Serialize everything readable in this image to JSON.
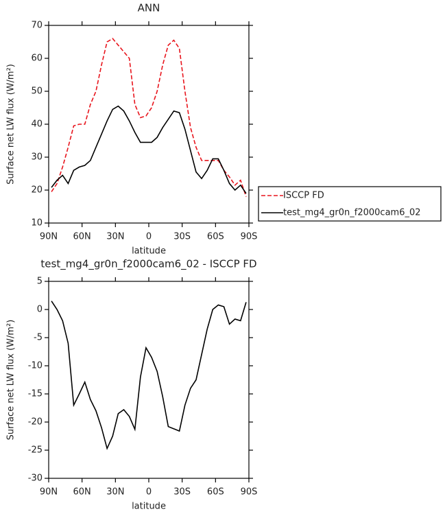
{
  "chart_data": [
    {
      "type": "line",
      "title": "ANN",
      "xlabel": "latitude",
      "ylabel": "Surface net LW flux (W/m²)",
      "x": [
        87.5,
        82.5,
        77.5,
        72.5,
        67.5,
        62.5,
        57.5,
        52.5,
        47.5,
        42.5,
        37.5,
        32.5,
        27.5,
        22.5,
        17.5,
        12.5,
        7.5,
        2.5,
        -2.5,
        -7.5,
        -12.5,
        -17.5,
        -22.5,
        -27.5,
        -32.5,
        -37.5,
        -42.5,
        -47.5,
        -52.5,
        -57.5,
        -62.5,
        -67.5,
        -72.5,
        -77.5,
        -82.5,
        -87.5
      ],
      "series": [
        {
          "name": "ISCCP FD",
          "color": "#e8141c",
          "style": "dashed",
          "values": [
            19.5,
            22,
            27,
            33,
            39.5,
            40,
            40,
            46,
            50,
            58,
            65,
            66,
            64,
            62,
            60,
            46,
            42,
            42.5,
            45,
            50,
            58,
            64,
            65.5,
            63,
            50,
            39,
            33,
            29,
            29,
            29,
            29,
            26,
            24,
            21.5,
            23,
            18
          ]
        },
        {
          "name": "test_mg4_gr0n_f2000cam6_02",
          "color": "#000000",
          "style": "solid",
          "values": [
            20.8,
            23,
            24.5,
            22,
            26,
            27,
            27.5,
            29,
            33,
            37,
            41,
            44.5,
            45.5,
            44,
            41,
            37.5,
            34.5,
            34.5,
            34.5,
            36,
            39,
            41.5,
            44,
            43.5,
            38.5,
            32,
            25.5,
            23.5,
            26,
            29.5,
            29.5,
            26,
            22,
            20,
            21.5,
            19
          ]
        }
      ],
      "xlim": [
        90,
        -90
      ],
      "xticks": [
        {
          "value": 90,
          "label": "90N"
        },
        {
          "value": 60,
          "label": "60N"
        },
        {
          "value": 30,
          "label": "30N"
        },
        0,
        {
          "value": -30,
          "label": "30S"
        },
        {
          "value": -60,
          "label": "60S"
        },
        {
          "value": -90,
          "label": "90S"
        }
      ],
      "ylim": [
        10,
        70
      ],
      "yticks": [
        10,
        20,
        30,
        40,
        50,
        60,
        70
      ],
      "legend": "right"
    },
    {
      "type": "line",
      "title": "test_mg4_gr0n_f2000cam6_02 - ISCCP FD",
      "xlabel": "latitude",
      "ylabel": "Surface net LW flux (W/m²)",
      "x": [
        87.5,
        82.5,
        77.5,
        72.5,
        67.5,
        62.5,
        57.5,
        52.5,
        47.5,
        42.5,
        37.5,
        32.5,
        27.5,
        22.5,
        17.5,
        12.5,
        7.5,
        2.5,
        -2.5,
        -7.5,
        -12.5,
        -17.5,
        -22.5,
        -27.5,
        -32.5,
        -37.5,
        -42.5,
        -47.5,
        -52.5,
        -57.5,
        -62.5,
        -67.5,
        -72.5,
        -77.5,
        -82.5,
        -87.5
      ],
      "series": [
        {
          "color": "#000000",
          "style": "solid",
          "values": [
            1.5,
            0,
            -2,
            -6,
            -17,
            -15,
            -12.9,
            -16,
            -18,
            -21,
            -24.7,
            -22.5,
            -18.5,
            -17.8,
            -19,
            -21.3,
            -12,
            -6.8,
            -8.5,
            -11,
            -15.5,
            -20.8,
            -21.2,
            -21.6,
            -17,
            -14,
            -12.5,
            -8,
            -3.5,
            0,
            0.8,
            0.5,
            -2.6,
            -1.7,
            -2,
            1.3
          ]
        }
      ],
      "xlim": [
        90,
        -90
      ],
      "xticks": [
        {
          "value": 90,
          "label": "90N"
        },
        {
          "value": 60,
          "label": "60N"
        },
        {
          "value": 30,
          "label": "30N"
        },
        0,
        {
          "value": -30,
          "label": "30S"
        },
        {
          "value": -60,
          "label": "60S"
        },
        {
          "value": -90,
          "label": "90S"
        }
      ],
      "ylim": [
        -30,
        5
      ],
      "yticks": [
        -30,
        -25,
        -20,
        -15,
        -10,
        -5,
        0,
        5
      ]
    }
  ]
}
